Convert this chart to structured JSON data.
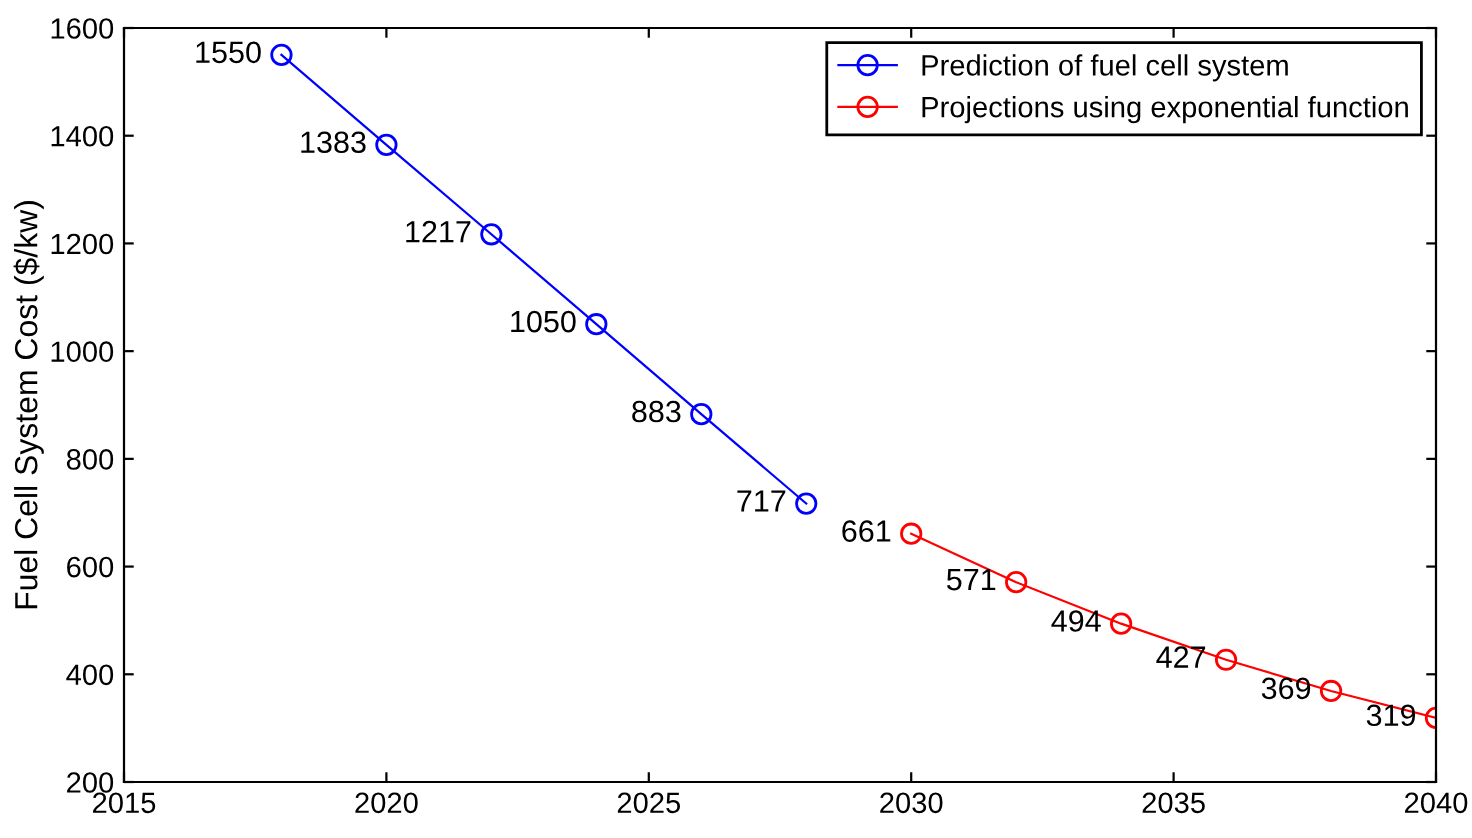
{
  "chart_data": {
    "type": "line",
    "ylabel": "Fuel Cell System Cost ($/kw)",
    "xlim": [
      2015,
      2040
    ],
    "xticks": [
      2015,
      2020,
      2025,
      2030,
      2035,
      2040
    ],
    "ylim": [
      200,
      1600
    ],
    "yticks": [
      200,
      400,
      600,
      800,
      1000,
      1200,
      1400,
      1600
    ],
    "grid": false,
    "legend": "top right",
    "marker": "circle",
    "line_style": "solid",
    "data_labels": true,
    "series": [
      {
        "name": "Prediction of fuel cell system",
        "color": "#0000ff",
        "x": [
          2018,
          2020,
          2022,
          2024,
          2026,
          2028
        ],
        "values": [
          1550,
          1383,
          1217,
          1050,
          883,
          717
        ]
      },
      {
        "name": "Projections using exponential function",
        "color": "#ff0000",
        "x": [
          2030,
          2032,
          2034,
          2036,
          2038,
          2040
        ],
        "values": [
          661,
          571,
          494,
          427,
          369,
          319
        ]
      }
    ]
  }
}
